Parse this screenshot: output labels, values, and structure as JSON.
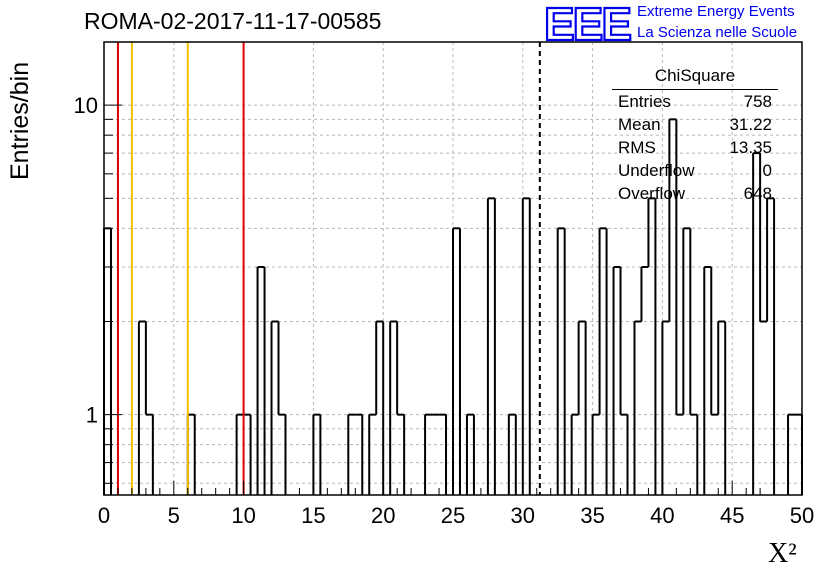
{
  "title": "ROMA-02-2017-11-17-00585",
  "logo": {
    "letters": "EEE",
    "line1": "Extreme Energy Events",
    "line2": "La Scienza nelle Scuole",
    "color": "#0000ee"
  },
  "stats": {
    "name": "ChiSquare",
    "rows": [
      {
        "label": "Entries",
        "value": "758"
      },
      {
        "label": "Mean",
        "value": "31.22"
      },
      {
        "label": "RMS",
        "value": "13.35"
      },
      {
        "label": "Underflow",
        "value": "0"
      },
      {
        "label": "Overflow",
        "value": "648"
      }
    ]
  },
  "chart_data": {
    "type": "bar",
    "histogram_style": "step",
    "title": "ROMA-02-2017-11-17-00585",
    "xlabel": "X²",
    "ylabel": "Entries/bin",
    "xlim": [
      0,
      50
    ],
    "ylim": [
      0.55,
      16
    ],
    "y_scale": "log",
    "grid": true,
    "bin_width": 0.5,
    "x_ticks": [
      "0",
      "5",
      "10",
      "15",
      "20",
      "25",
      "30",
      "35",
      "40",
      "45",
      "50"
    ],
    "y_ticks": [
      "1",
      "10"
    ],
    "bins": [
      {
        "x": 0.0,
        "count": 4
      },
      {
        "x": 2.5,
        "count": 2
      },
      {
        "x": 3.0,
        "count": 1
      },
      {
        "x": 6.0,
        "count": 1
      },
      {
        "x": 9.5,
        "count": 1
      },
      {
        "x": 10.0,
        "count": 1
      },
      {
        "x": 11.0,
        "count": 3
      },
      {
        "x": 12.0,
        "count": 2
      },
      {
        "x": 12.5,
        "count": 1
      },
      {
        "x": 15.0,
        "count": 1
      },
      {
        "x": 17.5,
        "count": 1
      },
      {
        "x": 18.0,
        "count": 1
      },
      {
        "x": 19.0,
        "count": 1
      },
      {
        "x": 19.5,
        "count": 2
      },
      {
        "x": 20.5,
        "count": 2
      },
      {
        "x": 21.0,
        "count": 1
      },
      {
        "x": 23.0,
        "count": 1
      },
      {
        "x": 23.5,
        "count": 1
      },
      {
        "x": 24.0,
        "count": 1
      },
      {
        "x": 25.0,
        "count": 4
      },
      {
        "x": 26.0,
        "count": 1
      },
      {
        "x": 27.5,
        "count": 5
      },
      {
        "x": 29.0,
        "count": 1
      },
      {
        "x": 30.0,
        "count": 5
      },
      {
        "x": 32.5,
        "count": 4
      },
      {
        "x": 33.5,
        "count": 1
      },
      {
        "x": 34.0,
        "count": 2
      },
      {
        "x": 35.0,
        "count": 1
      },
      {
        "x": 35.5,
        "count": 4
      },
      {
        "x": 36.5,
        "count": 3
      },
      {
        "x": 37.0,
        "count": 1
      },
      {
        "x": 38.0,
        "count": 2
      },
      {
        "x": 38.5,
        "count": 3
      },
      {
        "x": 39.0,
        "count": 5
      },
      {
        "x": 40.0,
        "count": 2
      },
      {
        "x": 40.5,
        "count": 9
      },
      {
        "x": 41.0,
        "count": 1
      },
      {
        "x": 41.5,
        "count": 4
      },
      {
        "x": 42.0,
        "count": 1
      },
      {
        "x": 43.0,
        "count": 3
      },
      {
        "x": 43.5,
        "count": 1
      },
      {
        "x": 44.0,
        "count": 2
      },
      {
        "x": 46.5,
        "count": 7
      },
      {
        "x": 47.0,
        "count": 2
      },
      {
        "x": 47.5,
        "count": 5
      },
      {
        "x": 49.0,
        "count": 1
      },
      {
        "x": 49.5,
        "count": 1
      }
    ],
    "vertical_lines": [
      {
        "x": 1.0,
        "color": "#e00000",
        "style": "solid"
      },
      {
        "x": 10.0,
        "color": "#e00000",
        "style": "solid"
      },
      {
        "x": 2.0,
        "color": "#f0c000",
        "style": "solid"
      },
      {
        "x": 6.0,
        "color": "#f0c000",
        "style": "solid"
      },
      {
        "x": 31.22,
        "color": "#000000",
        "style": "dashed"
      }
    ]
  }
}
